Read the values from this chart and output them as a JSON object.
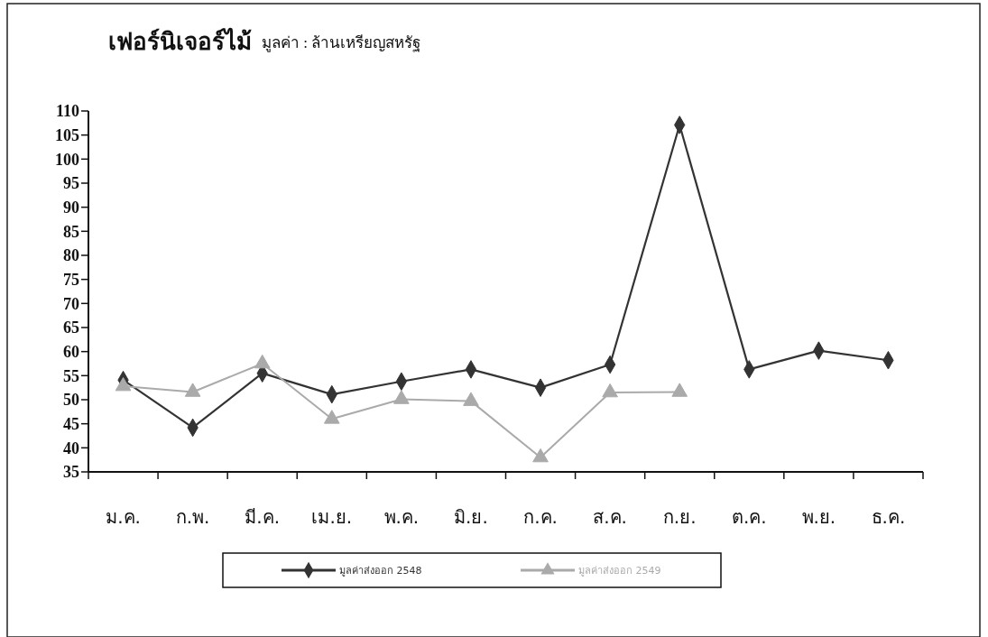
{
  "chart_data": {
    "type": "line",
    "title": "เฟอร์นิเจอร์ไม้",
    "subtitle": "มูลค่า : ล้านเหรียญสหรัฐ",
    "categories": [
      "ม.ค.",
      "ก.พ.",
      "มี.ค.",
      "เม.ย.",
      "พ.ค.",
      "มิ.ย.",
      "ก.ค.",
      "ส.ค.",
      "ก.ย.",
      "ต.ค.",
      "พ.ย.",
      "ธ.ค."
    ],
    "series": [
      {
        "name": "มูลค่าส่งออก 2548",
        "color": "#333333",
        "marker": "diamond",
        "values": [
          54.1,
          44.2,
          55.5,
          51.1,
          53.8,
          56.3,
          52.5,
          57.3,
          107.1,
          56.3,
          60.2,
          58.2
        ]
      },
      {
        "name": "มูลค่าส่งออก 2549",
        "color": "#aaaaaa",
        "marker": "triangle",
        "values": [
          52.8,
          51.6,
          57.5,
          46,
          50.1,
          49.7,
          38,
          51.5,
          51.6,
          null,
          null,
          null
        ]
      }
    ],
    "ylim": [
      35,
      110
    ],
    "yticks": [
      35,
      40,
      45,
      50,
      55,
      60,
      65,
      70,
      75,
      80,
      85,
      90,
      95,
      100,
      105,
      110
    ],
    "legend": "bottom",
    "grid": false
  }
}
